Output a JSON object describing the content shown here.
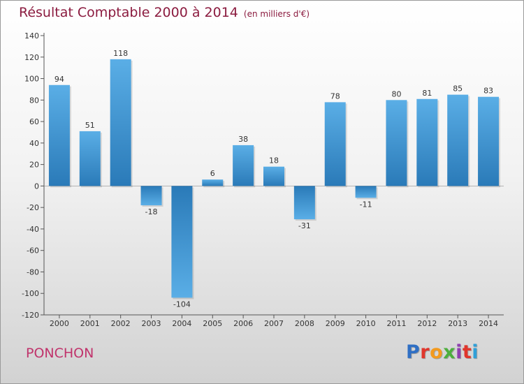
{
  "header": {
    "title": "Résultat Comptable 2000 à 2014",
    "unit": "(en milliers d'€)"
  },
  "footer": {
    "commune": "PONCHON",
    "logo_letters": [
      "P",
      "r",
      "o",
      "x",
      "i",
      "t",
      "i"
    ]
  },
  "colors": {
    "title": "#8b1b3f",
    "commune": "#c0336b",
    "bar_light": "#5aaee6",
    "bar_dark": "#2a7ab8"
  },
  "chart_data": {
    "type": "bar",
    "categories": [
      "2000",
      "2001",
      "2002",
      "2003",
      "2004",
      "2005",
      "2006",
      "2007",
      "2008",
      "2009",
      "2010",
      "2011",
      "2012",
      "2013",
      "2014"
    ],
    "values": [
      94,
      51,
      118,
      -18,
      -104,
      6,
      38,
      18,
      -31,
      78,
      -11,
      80,
      81,
      85,
      83
    ],
    "title": "Résultat Comptable 2000 à 2014",
    "ylim": [
      -120,
      140
    ],
    "yticks": [
      -120,
      -100,
      -80,
      -60,
      -40,
      -20,
      0,
      20,
      40,
      60,
      80,
      100,
      120,
      140
    ],
    "grid": false
  }
}
